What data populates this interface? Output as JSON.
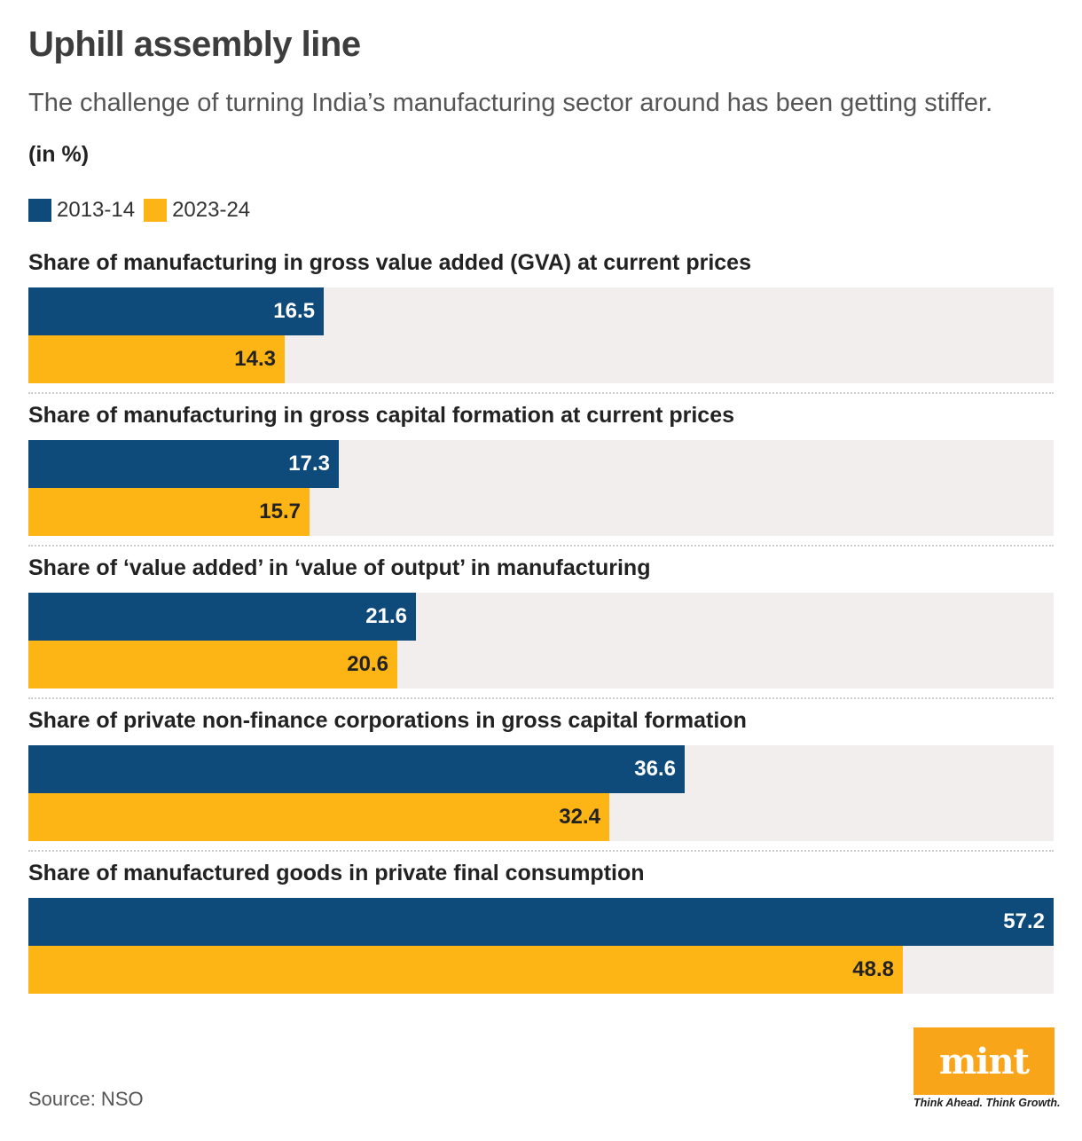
{
  "title": "Uphill assembly line",
  "subtitle": "The challenge of turning India’s manufacturing sector around has been getting stiffer.",
  "unit": "(in %)",
  "legend": [
    {
      "label": "2013-14",
      "color": "#0e4a7a"
    },
    {
      "label": "2023-24",
      "color": "#fdb515"
    }
  ],
  "colors": {
    "series_a": "#0e4a7a",
    "series_b": "#fdb515",
    "track": "#f2eeee",
    "label_a": "#ffffff",
    "label_b": "#222222"
  },
  "chart_data": {
    "type": "bar",
    "orientation": "horizontal",
    "xlim": [
      0,
      57.2
    ],
    "series_names": [
      "2013-14",
      "2023-24"
    ],
    "panels": [
      {
        "title": "Share of manufacturing in gross value  added (GVA) at current prices",
        "values": [
          16.5,
          14.3
        ]
      },
      {
        "title": "Share of manufacturing in gross capital formation at current prices",
        "values": [
          17.3,
          15.7
        ]
      },
      {
        "title": "Share of ‘value added’ in ‘value of output’ in manufacturing",
        "values": [
          21.6,
          20.6
        ]
      },
      {
        "title": "Share of private non-finance corporations in gross capital formation",
        "values": [
          36.6,
          32.4
        ]
      },
      {
        "title": "Share of manufactured goods in private final consumption",
        "values": [
          57.2,
          48.8
        ]
      }
    ]
  },
  "source": "Source: NSO",
  "brand": {
    "logo": "mint",
    "tagline": "Think Ahead. Think Growth."
  }
}
